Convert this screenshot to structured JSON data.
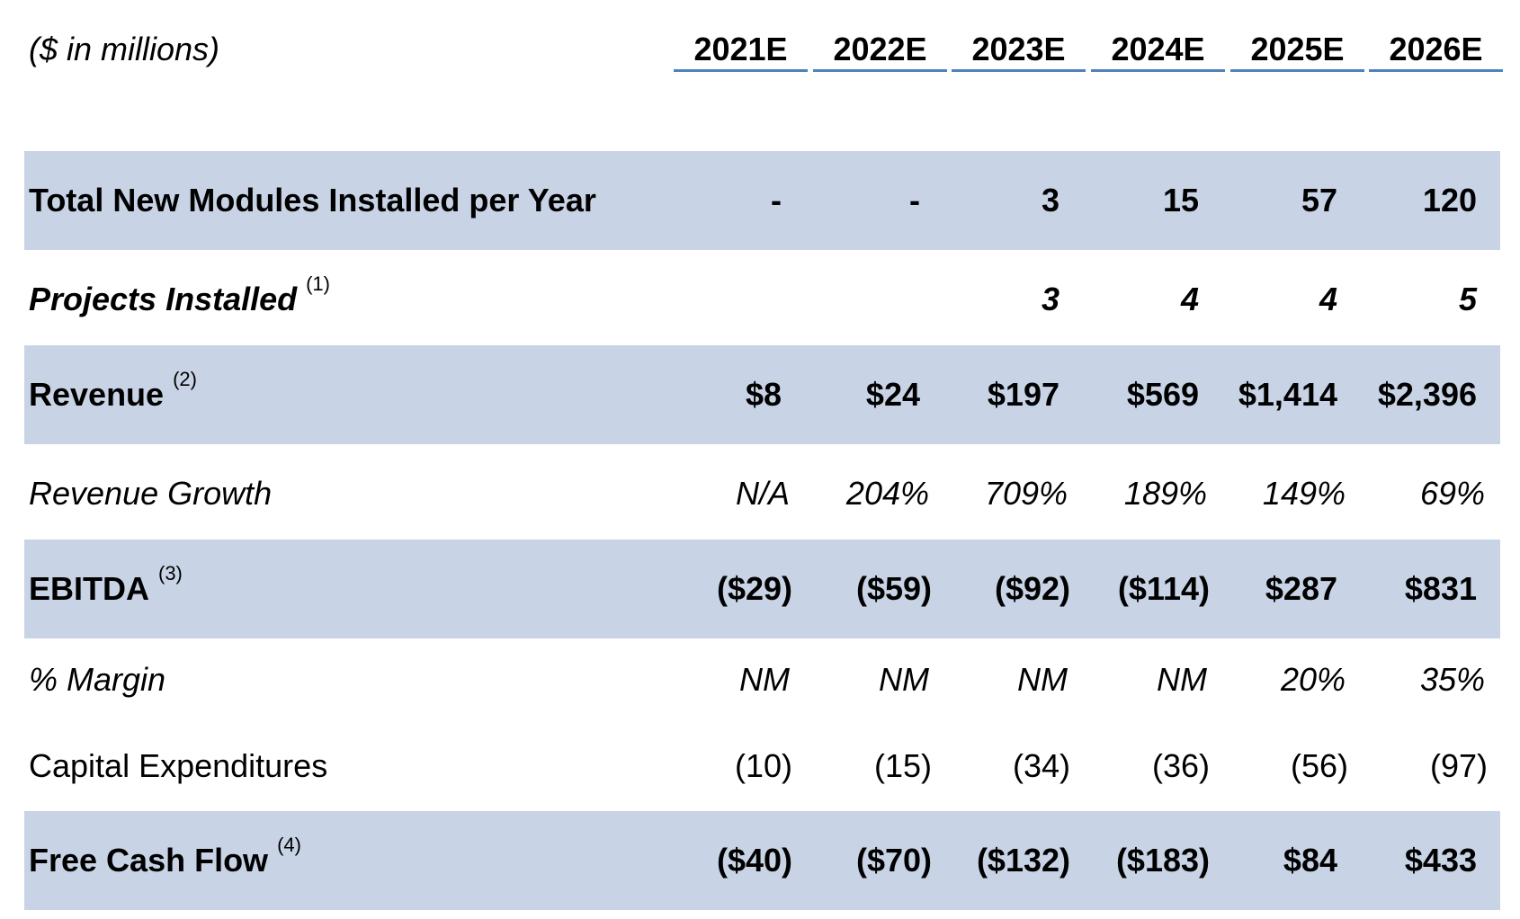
{
  "units_label": "($ in millions)",
  "years": [
    "2021E",
    "2022E",
    "2023E",
    "2024E",
    "2025E",
    "2026E"
  ],
  "colors": {
    "shade": "#c8d4e6",
    "header_rule": "#4f81bd"
  },
  "rows": [
    {
      "label": "Total New Modules Installed per Year",
      "note": "",
      "values": [
        "-",
        "-",
        "3",
        "15",
        "57",
        "120"
      ]
    },
    {
      "label": "Projects Installed",
      "note": "(1)",
      "values": [
        "",
        "",
        "3",
        "4",
        "4",
        "5"
      ]
    },
    {
      "label": "Revenue",
      "note": "(2)",
      "values": [
        "$8",
        "$24",
        "$197",
        "$569",
        "$1,414",
        "$2,396"
      ]
    },
    {
      "label": "Revenue Growth",
      "note": "",
      "values": [
        "N/A",
        "204%",
        "709%",
        "189%",
        "149%",
        "69%"
      ]
    },
    {
      "label": "EBITDA",
      "note": "(3)",
      "values": [
        "($29)",
        "($59)",
        "($92)",
        "($114)",
        "$287",
        "$831"
      ]
    },
    {
      "label": "% Margin",
      "note": "",
      "values": [
        "NM",
        "NM",
        "NM",
        "NM",
        "20%",
        "35%"
      ]
    },
    {
      "label": "Capital Expenditures",
      "note": "",
      "values": [
        "(10)",
        "(15)",
        "(34)",
        "(36)",
        "(56)",
        "(97)"
      ]
    },
    {
      "label": "Free Cash Flow",
      "note": "(4)",
      "values": [
        "($40)",
        "($70)",
        "($132)",
        "($183)",
        "$84",
        "$433"
      ]
    }
  ]
}
